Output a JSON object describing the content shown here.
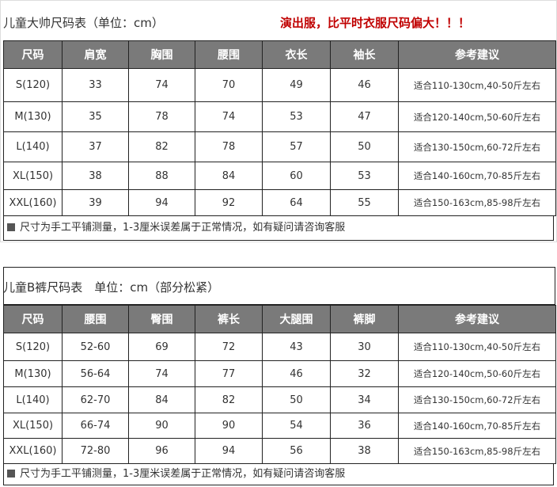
{
  "top": {
    "title": "儿童大帅尺码表（单位：cm）",
    "warning": "演出服，比平时衣服尺码偏大！！！",
    "headers": [
      "尺码",
      "肩宽",
      "胸围",
      "腰围",
      "衣长",
      "袖长",
      "参考建议"
    ],
    "rows": [
      [
        "S(120)",
        "33",
        "74",
        "70",
        "49",
        "46",
        "适合110-130cm,40-50斤左右"
      ],
      [
        "M(130)",
        "35",
        "78",
        "74",
        "53",
        "47",
        "适合120-140cm,50-60斤左右"
      ],
      [
        "L(140)",
        "37",
        "82",
        "78",
        "57",
        "50",
        "适合130-150cm,60-72斤左右"
      ],
      [
        "XL(150)",
        "38",
        "88",
        "84",
        "60",
        "53",
        "适合140-160cm,70-85斤左右"
      ],
      [
        "XXL(160)",
        "39",
        "94",
        "92",
        "64",
        "55",
        "适合150-163cm,85-98斤左右"
      ]
    ],
    "note": "尺寸为手工平铺测量，1-3厘米误差属于正常情况，如有疑问请咨询客服"
  },
  "bottom": {
    "title": "儿童B裤尺码表　单位：cm（部分松紧）",
    "headers": [
      "尺码",
      "腰围",
      "臀围",
      "裤长",
      "大腿围",
      "裤脚",
      "参考建议"
    ],
    "rows": [
      [
        "S(120)",
        "52-60",
        "69",
        "72",
        "43",
        "30",
        "适合110-130cm,40-50斤左右"
      ],
      [
        "M(130)",
        "56-64",
        "74",
        "77",
        "46",
        "32",
        "适合120-140cm,50-60斤左右"
      ],
      [
        "L(140)",
        "62-70",
        "84",
        "82",
        "50",
        "34",
        "适合130-150cm,60-72斤左右"
      ],
      [
        "XL(150)",
        "66-74",
        "90",
        "90",
        "54",
        "36",
        "适合140-160cm,70-85斤左右"
      ],
      [
        "XXL(160)",
        "72-80",
        "96",
        "94",
        "56",
        "38",
        "适合150-163cm,85-98斤左右"
      ]
    ],
    "note": "尺寸为手工平铺测量，1-3厘米误差属于正常情况，如有疑问请咨询客服"
  }
}
